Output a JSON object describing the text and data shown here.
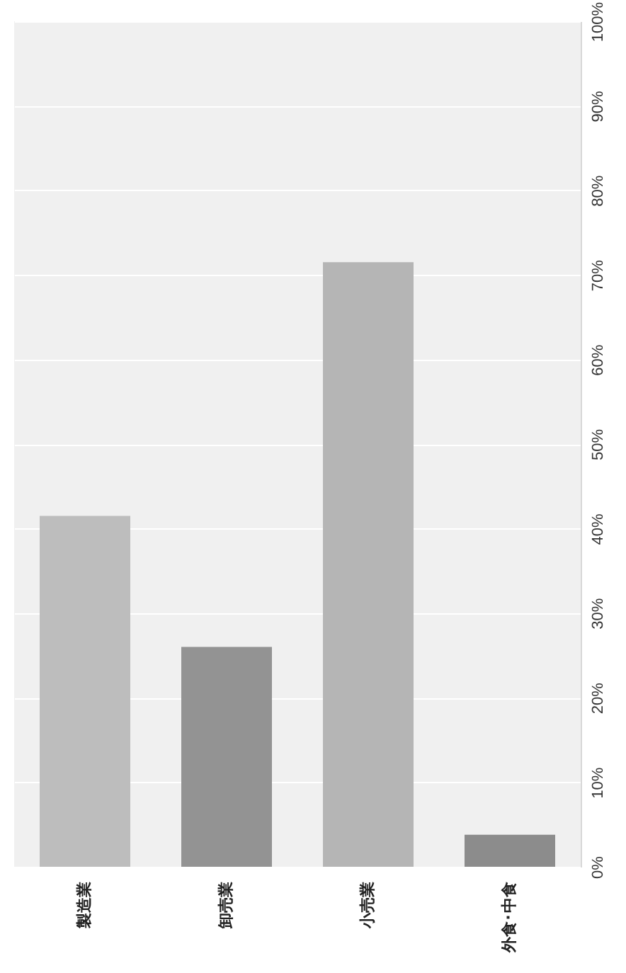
{
  "chart_data": {
    "type": "bar",
    "categories": [
      "製造業",
      "卸売業",
      "小売業",
      "外食･中食"
    ],
    "values": [
      41.5,
      26,
      71.5,
      3.8
    ],
    "colors": [
      "#bdbdbd",
      "#939393",
      "#b5b5b5",
      "#8c8c8c"
    ],
    "ylim": [
      0,
      100
    ],
    "yticks": [
      {
        "value": 0,
        "label": "0%"
      },
      {
        "value": 10,
        "label": "10%"
      },
      {
        "value": 20,
        "label": "20%"
      },
      {
        "value": 30,
        "label": "30%"
      },
      {
        "value": 40,
        "label": "40%"
      },
      {
        "value": 50,
        "label": "50%"
      },
      {
        "value": 60,
        "label": "60%"
      },
      {
        "value": 70,
        "label": "70%"
      },
      {
        "value": 80,
        "label": "80%"
      },
      {
        "value": 90,
        "label": "90%"
      },
      {
        "value": 100,
        "label": "100%"
      }
    ],
    "grid": "y"
  }
}
